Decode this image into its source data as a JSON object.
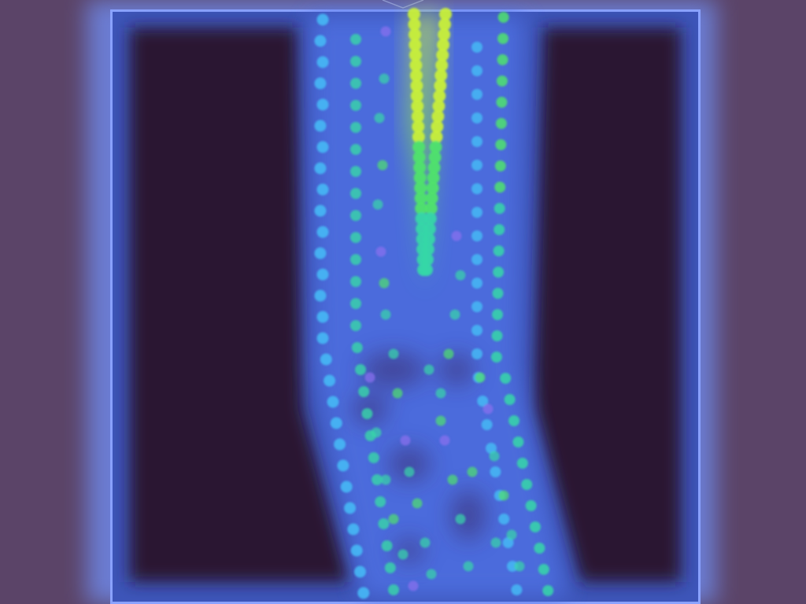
{
  "scene": {
    "name": "fluid-particle-simulation",
    "colors": {
      "background": "#5b4468",
      "frame_glow": "#6e86e6",
      "arena": "#3d55b9",
      "wall_dark": "#2a1333",
      "fluid_blue": "#4d6ee0",
      "particle_cyan": "#47b8f5",
      "particle_teal": "#37d7a8",
      "particle_green": "#4fe36c",
      "particle_yellow": "#c8ef3a",
      "particle_violet": "#8b6ff0"
    },
    "emitter_icon": "nozzle-icon"
  }
}
